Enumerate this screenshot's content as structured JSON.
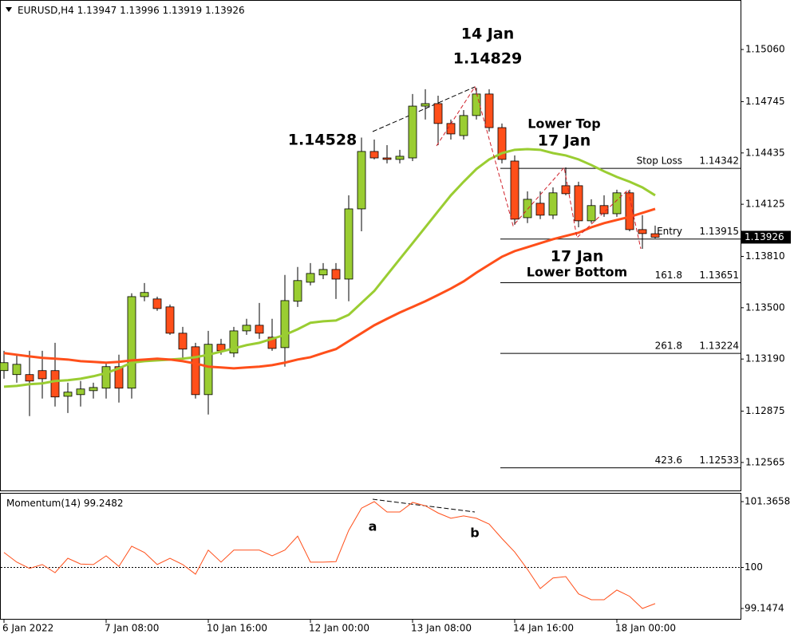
{
  "chart_data": [
    {
      "type": "candlestick",
      "symbol": "EURUSD,H4",
      "categories": [
        "6 Jan 2022",
        null,
        null,
        null,
        null,
        null,
        null,
        null,
        "7 Jan 08:00",
        null,
        null,
        null,
        null,
        null,
        null,
        null,
        "10 Jan 16:00",
        null,
        null,
        null,
        null,
        null,
        null,
        null,
        "12 Jan 00:00",
        null,
        null,
        null,
        null,
        null,
        null,
        null,
        "13 Jan 08:00",
        null,
        null,
        null,
        null,
        null,
        null,
        null,
        "14 Jan 16:00",
        null,
        null,
        null,
        null,
        null,
        null,
        null,
        "18 Jan 00:00",
        null,
        null,
        null
      ],
      "open": [
        1.1312,
        1.13096,
        1.13096,
        1.1312,
        1.1312,
        1.12965,
        1.12975,
        1.12999,
        1.13014,
        1.13144,
        1.13014,
        1.13567,
        1.13553,
        1.13505,
        1.13346,
        1.13264,
        1.12975,
        1.13279,
        1.13226,
        1.1336,
        1.13394,
        1.13322,
        1.13259,
        1.13539,
        1.13654,
        1.13698,
        1.13731,
        1.13673,
        1.14097,
        1.14444,
        1.14405,
        1.14396,
        1.14405,
        1.14718,
        1.14733,
        1.14613,
        1.1454,
        1.14661,
        1.14791,
        1.14588,
        1.14386,
        1.14044,
        1.14131,
        1.14059,
        1.14237,
        1.14237,
        1.14025,
        1.14117,
        1.14068,
        1.14194,
        1.13972,
        1.13947
      ],
      "high": [
        1.1324,
        1.13216,
        1.1324,
        1.1324,
        1.13288,
        1.13047,
        1.13057,
        1.13047,
        1.13168,
        1.13216,
        1.13587,
        1.13649,
        1.13567,
        1.13519,
        1.13384,
        1.13288,
        1.1336,
        1.13312,
        1.13384,
        1.13433,
        1.13529,
        1.13433,
        1.13698,
        1.13746,
        1.1377,
        1.1377,
        1.1377,
        1.14179,
        1.14528,
        1.14516,
        1.14482,
        1.14454,
        1.14791,
        1.1482,
        1.14781,
        1.14637,
        1.14694,
        1.14829,
        1.1482,
        1.14613,
        1.1442,
        1.14203,
        1.14203,
        1.14227,
        1.14348,
        1.14261,
        1.14155,
        1.14179,
        1.14213,
        1.14213,
        1.14059,
        1.13996
      ],
      "low": [
        1.13071,
        1.13047,
        1.12845,
        1.12951,
        1.12903,
        1.12864,
        1.12903,
        1.12951,
        1.12951,
        1.12927,
        1.12951,
        1.13539,
        1.13481,
        1.13336,
        1.13192,
        1.12951,
        1.12855,
        1.13216,
        1.13201,
        1.13336,
        1.13312,
        1.1324,
        1.13144,
        1.13505,
        1.13635,
        1.13673,
        1.13553,
        1.13539,
        1.13962,
        1.14396,
        1.14372,
        1.14372,
        1.14386,
        1.14637,
        1.14482,
        1.14516,
        1.14516,
        1.14637,
        1.14564,
        1.14372,
        1.14001,
        1.14011,
        1.14035,
        1.14035,
        1.14179,
        1.13986,
        1.14011,
        1.14049,
        1.14049,
        1.13962,
        1.13856,
        1.13919
      ],
      "close": [
        1.13168,
        1.13158,
        1.13057,
        1.13071,
        1.12961,
        1.1299,
        1.13009,
        1.13018,
        1.13144,
        1.13014,
        1.13567,
        1.13592,
        1.13495,
        1.13346,
        1.1325,
        1.12975,
        1.13279,
        1.1324,
        1.1336,
        1.13394,
        1.13346,
        1.13254,
        1.13543,
        1.13664,
        1.13707,
        1.13731,
        1.13673,
        1.14097,
        1.14444,
        1.14405,
        1.14396,
        1.14415,
        1.14718,
        1.14733,
        1.14613,
        1.1455,
        1.14661,
        1.14791,
        1.14588,
        1.14396,
        1.14035,
        1.14155,
        1.14059,
        1.14194,
        1.14189,
        1.14025,
        1.14117,
        1.14068,
        1.14194,
        1.13972,
        1.13948,
        1.13926
      ],
      "up_color": "#9acd32",
      "down_color": "#ff4f1a",
      "moving_averages": [
        {
          "color": "#9acd32",
          "values": [
            1.13023,
            1.13028,
            1.13038,
            1.13043,
            1.13057,
            1.13062,
            1.13071,
            1.13086,
            1.13105,
            1.13134,
            1.13168,
            1.13177,
            1.13182,
            1.13187,
            1.13192,
            1.13201,
            1.13216,
            1.13235,
            1.13254,
            1.13274,
            1.13288,
            1.13312,
            1.13336,
            1.1337,
            1.13409,
            1.13418,
            1.13423,
            1.13457,
            1.13529,
            1.13601,
            1.13698,
            1.13794,
            1.1389,
            1.13986,
            1.14083,
            1.14179,
            1.14261,
            1.14338,
            1.14396,
            1.14434,
            1.14454,
            1.14458,
            1.14454,
            1.14434,
            1.1442,
            1.14396,
            1.14362,
            1.14324,
            1.1429,
            1.14261,
            1.14227,
            1.14179
          ]
        },
        {
          "color": "#ff4f1a",
          "values": [
            1.13226,
            1.13216,
            1.13206,
            1.13197,
            1.13192,
            1.13187,
            1.13177,
            1.13173,
            1.13168,
            1.13173,
            1.13182,
            1.13187,
            1.13192,
            1.13187,
            1.13177,
            1.13163,
            1.13144,
            1.13139,
            1.13134,
            1.13139,
            1.13144,
            1.13153,
            1.13168,
            1.13187,
            1.13201,
            1.13226,
            1.1325,
            1.13298,
            1.13346,
            1.13394,
            1.13433,
            1.13471,
            1.13505,
            1.13539,
            1.13577,
            1.13616,
            1.13659,
            1.13712,
            1.1376,
            1.13808,
            1.13842,
            1.13866,
            1.1389,
            1.13914,
            1.13934,
            1.13953,
            1.13986,
            1.14011,
            1.1403,
            1.14049,
            1.14073,
            1.14097
          ]
        }
      ],
      "ylim": [
        1.12396,
        1.15359
      ],
      "yticks": [
        {
          "value": 1.1506,
          "label": "1.15060"
        },
        1.14745,
        1.14435,
        1.14125,
        {
          "value": 1.1381,
          "label": "1.13810"
        },
        {
          "value": 1.135,
          "label": "1.13500"
        },
        {
          "value": 1.1319,
          "label": "1.13190"
        },
        1.12875,
        1.12565
      ],
      "levels": [
        {
          "label": "Stop Loss",
          "value": 1.14342
        },
        {
          "label": "Entry",
          "value": 1.13915
        },
        {
          "label": "161.8",
          "value": 1.13651
        },
        {
          "label": "261.8",
          "value": 1.13224
        },
        {
          "label": "423.6",
          "value": 1.12533
        }
      ],
      "annotations": [
        "14 Jan",
        "Lower Top",
        "17 Jan",
        "17 Jan",
        "Lower Bottom"
      ]
    },
    {
      "type": "line",
      "title": "Momentum(14)",
      "color": "#ff4f1a",
      "values": [
        100.31,
        100.11,
        99.98,
        100.06,
        99.89,
        100.19,
        100.07,
        100.06,
        100.24,
        100.02,
        100.44,
        100.31,
        100.06,
        100.19,
        100.06,
        99.86,
        100.36,
        100.11,
        100.36,
        100.36,
        100.36,
        100.24,
        100.36,
        100.65,
        100.11,
        100.11,
        100.12,
        100.77,
        101.23,
        101.3658,
        101.15,
        101.15,
        101.35,
        101.28,
        101.13,
        101.02,
        101.07,
        101.02,
        100.9,
        100.6,
        100.32,
        99.96,
        99.56,
        99.78,
        99.81,
        99.45,
        99.33,
        99.33,
        99.53,
        99.4,
        99.1474,
        99.2482
      ],
      "ylim": [
        98.932,
        101.548
      ],
      "yticks": [
        101.3658,
        100,
        99.1474
      ],
      "level": 100,
      "annotations": [
        "a",
        "b"
      ]
    }
  ]
}
